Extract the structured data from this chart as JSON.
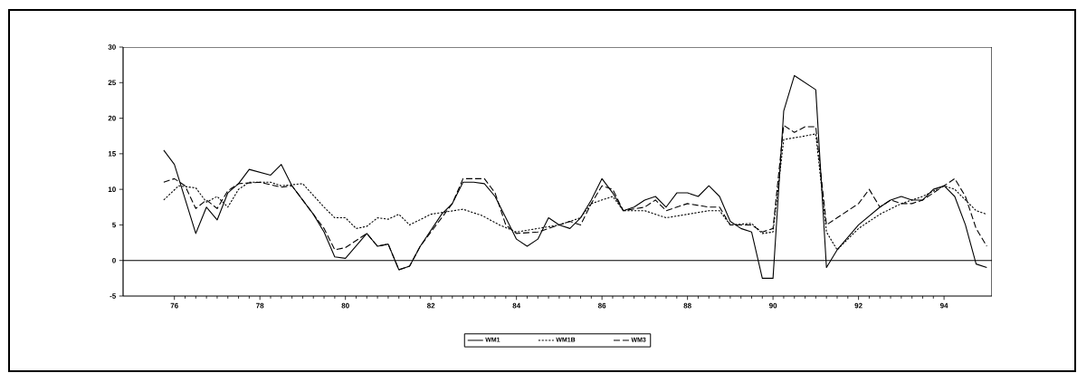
{
  "chart_data": {
    "type": "line",
    "xlim": [
      74.8,
      95.12
    ],
    "ylim": [
      -5,
      30
    ],
    "xticks": [
      76,
      78,
      80,
      82,
      84,
      86,
      88,
      90,
      92,
      94
    ],
    "yticks": [
      -5,
      0,
      5,
      10,
      15,
      20,
      25,
      30
    ],
    "grid": false,
    "legend": "bottom",
    "marker": "none",
    "ref_lines": [
      {
        "axis": "y",
        "value": 0,
        "color": "#000000",
        "line_style": "solid"
      }
    ],
    "series": [
      {
        "name": "WM1",
        "color": "#000000",
        "line_style": "solid",
        "x": [
          75.75,
          76.0,
          76.5,
          76.75,
          77.0,
          77.25,
          77.5,
          77.75,
          78.25,
          78.5,
          78.75,
          79.25,
          79.5,
          79.75,
          80.0,
          80.5,
          80.75,
          81.0,
          81.25,
          81.5,
          81.75,
          82.25,
          82.5,
          82.75,
          83.0,
          83.25,
          83.5,
          83.75,
          84.0,
          84.25,
          84.5,
          84.75,
          85.0,
          85.25,
          85.5,
          85.75,
          86.0,
          86.25,
          86.5,
          86.75,
          87.0,
          87.25,
          87.5,
          87.75,
          88.0,
          88.25,
          88.5,
          88.75,
          89.0,
          89.25,
          89.5,
          89.75,
          90.0,
          90.25,
          90.5,
          91.0,
          91.25,
          91.5,
          92.0,
          92.5,
          92.75,
          93.0,
          93.25,
          93.5,
          93.75,
          94.0,
          94.25,
          94.5,
          94.75,
          95.0
        ],
        "values": [
          15.5,
          13.5,
          3.8,
          7.5,
          5.7,
          9.5,
          10.8,
          12.8,
          12.0,
          13.5,
          10.5,
          6.5,
          4.0,
          0.5,
          0.3,
          3.8,
          2.0,
          2.3,
          -1.3,
          -0.8,
          2.0,
          6.5,
          8.0,
          11.0,
          11.0,
          10.8,
          9.0,
          6.0,
          3.0,
          2.0,
          3.0,
          6.0,
          5.0,
          4.5,
          6.0,
          8.5,
          11.5,
          9.5,
          7.0,
          7.5,
          8.5,
          9.0,
          7.5,
          9.5,
          9.5,
          9.0,
          10.5,
          9.0,
          5.5,
          4.5,
          4.0,
          -2.5,
          -2.5,
          21.0,
          26.0,
          24.0,
          -1.0,
          1.5,
          5.0,
          7.5,
          8.5,
          9.0,
          8.5,
          8.5,
          10.0,
          10.5,
          9.0,
          5.0,
          -0.5,
          -1.0
        ]
      },
      {
        "name": "WM1B",
        "color": "#000000",
        "line_style": "dotted",
        "x": [
          75.75,
          76.1,
          76.5,
          76.75,
          77.0,
          77.25,
          77.5,
          77.75,
          78.25,
          78.5,
          79.0,
          79.5,
          79.75,
          80.0,
          80.25,
          80.5,
          80.75,
          81.0,
          81.25,
          81.5,
          82.0,
          82.75,
          83.2,
          83.6,
          84.0,
          84.5,
          85.0,
          85.5,
          85.75,
          86.25,
          86.5,
          87.0,
          87.5,
          88.0,
          88.5,
          88.75,
          89.0,
          89.5,
          89.75,
          90.0,
          90.25,
          90.75,
          91.0,
          91.25,
          91.5,
          92.0,
          92.5,
          93.0,
          93.5,
          94.0,
          94.25,
          94.5,
          94.75,
          95.0
        ],
        "values": [
          8.5,
          10.5,
          10.2,
          8.2,
          9.0,
          7.5,
          10.0,
          11.0,
          11.0,
          10.5,
          10.8,
          7.5,
          6.0,
          6.0,
          4.5,
          4.8,
          6.0,
          5.8,
          6.5,
          5.0,
          6.5,
          7.2,
          6.3,
          5.0,
          4.0,
          4.5,
          5.0,
          6.0,
          8.0,
          9.0,
          7.0,
          7.0,
          6.0,
          6.5,
          7.0,
          7.0,
          5.0,
          5.2,
          3.8,
          4.0,
          17.0,
          17.5,
          17.8,
          4.0,
          1.5,
          4.5,
          6.5,
          8.0,
          9.0,
          10.5,
          10.0,
          8.5,
          7.0,
          6.5
        ]
      },
      {
        "name": "WM3",
        "color": "#000000",
        "line_style": "dashed",
        "x": [
          75.75,
          76.0,
          76.25,
          76.5,
          76.75,
          77.0,
          77.25,
          77.5,
          78.0,
          78.5,
          78.75,
          79.25,
          79.5,
          79.75,
          80.0,
          80.5,
          80.75,
          81.0,
          81.25,
          81.5,
          81.75,
          82.25,
          82.5,
          82.75,
          83.0,
          83.25,
          83.5,
          83.75,
          84.0,
          84.5,
          85.0,
          85.25,
          85.5,
          85.75,
          86.0,
          86.25,
          86.5,
          87.0,
          87.25,
          87.5,
          88.0,
          88.5,
          88.75,
          89.0,
          89.5,
          89.75,
          90.0,
          90.25,
          90.5,
          90.75,
          91.0,
          91.25,
          91.5,
          92.0,
          92.25,
          92.5,
          92.75,
          93.0,
          93.25,
          93.5,
          93.75,
          94.0,
          94.25,
          94.5,
          94.75,
          95.0
        ],
        "values": [
          11.0,
          11.5,
          10.5,
          7.3,
          8.5,
          7.3,
          9.8,
          10.8,
          11.0,
          10.3,
          10.5,
          6.5,
          4.5,
          1.5,
          1.8,
          3.8,
          2.0,
          2.3,
          -1.3,
          -0.8,
          2.0,
          6.0,
          8.0,
          11.5,
          11.5,
          11.5,
          9.5,
          5.0,
          3.8,
          4.0,
          5.0,
          5.5,
          5.0,
          8.0,
          10.5,
          10.0,
          7.0,
          7.5,
          8.5,
          7.0,
          8.0,
          7.5,
          7.5,
          5.0,
          5.0,
          4.0,
          4.5,
          19.0,
          18.0,
          18.8,
          18.8,
          5.0,
          6.0,
          8.0,
          10.0,
          7.5,
          8.5,
          8.0,
          8.0,
          8.5,
          9.5,
          10.5,
          11.5,
          9.0,
          4.5,
          2.0
        ]
      }
    ]
  }
}
